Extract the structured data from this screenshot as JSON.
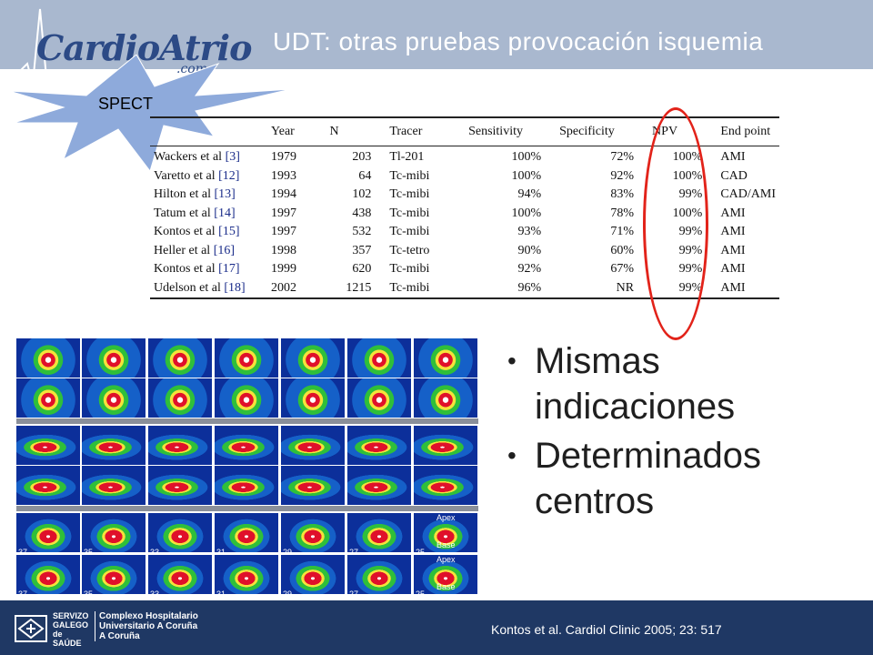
{
  "header": {
    "logo_main": "CardioAtrio",
    "logo_sub": ".com",
    "title": "UDT: otras pruebas  provocación isquemia"
  },
  "badge": {
    "label": "SPECT"
  },
  "table": {
    "columns": [
      "",
      "Year",
      "N",
      "Tracer",
      "Sensitivity",
      "Specificity",
      "NPV",
      "End point"
    ],
    "rows": [
      {
        "study": "Wackers et al",
        "ref": "[3]",
        "year": "1979",
        "n": "203",
        "tracer": "Tl-201",
        "sensitivity": "100%",
        "specificity": "72%",
        "npv": "100%",
        "endpoint": "AMI"
      },
      {
        "study": "Varetto et al",
        "ref": "[12]",
        "year": "1993",
        "n": "64",
        "tracer": "Tc-mibi",
        "sensitivity": "100%",
        "specificity": "92%",
        "npv": "100%",
        "endpoint": "CAD"
      },
      {
        "study": "Hilton et al",
        "ref": "[13]",
        "year": "1994",
        "n": "102",
        "tracer": "Tc-mibi",
        "sensitivity": "94%",
        "specificity": "83%",
        "npv": "99%",
        "endpoint": "CAD/AMI"
      },
      {
        "study": "Tatum et al",
        "ref": "[14]",
        "year": "1997",
        "n": "438",
        "tracer": "Tc-mibi",
        "sensitivity": "100%",
        "specificity": "78%",
        "npv": "100%",
        "endpoint": "AMI"
      },
      {
        "study": "Kontos et al",
        "ref": "[15]",
        "year": "1997",
        "n": "532",
        "tracer": "Tc-mibi",
        "sensitivity": "93%",
        "specificity": "71%",
        "npv": "99%",
        "endpoint": "AMI"
      },
      {
        "study": "Heller et al",
        "ref": "[16]",
        "year": "1998",
        "n": "357",
        "tracer": "Tc-tetro",
        "sensitivity": "90%",
        "specificity": "60%",
        "npv": "99%",
        "endpoint": "AMI"
      },
      {
        "study": "Kontos et al",
        "ref": "[17]",
        "year": "1999",
        "n": "620",
        "tracer": "Tc-mibi",
        "sensitivity": "92%",
        "specificity": "67%",
        "npv": "99%",
        "endpoint": "AMI"
      },
      {
        "study": "Udelson et al",
        "ref": "[18]",
        "year": "2002",
        "n": "1215",
        "tracer": "Tc-mibi",
        "sensitivity": "96%",
        "specificity": "NR",
        "npv": "99%",
        "endpoint": "AMI"
      }
    ]
  },
  "bullets": [
    "Mismas indicaciones",
    "Determinados centros"
  ],
  "scan_labels": {
    "apex": "Apex",
    "base": "Base",
    "bottom_numbers": [
      "37",
      "35",
      "33",
      "31",
      "29",
      "27",
      "25"
    ]
  },
  "footer": {
    "sg_lines": [
      "SERVIZO",
      "GALEGO",
      "de SAÚDE"
    ],
    "ch_lines": [
      "Complexo Hospitalario",
      "Universitario A Coruña",
      "A Coruña"
    ],
    "citation": "Kontos et al. Cardiol Clinic 2005; 23: 517"
  },
  "colors": {
    "header_band": "#a9b8cf",
    "footer_band": "#1f3864",
    "highlight_oval": "#e2231a",
    "starburst": "#8eaadb"
  }
}
